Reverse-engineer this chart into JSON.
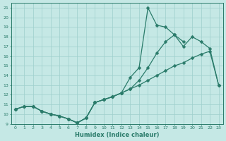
{
  "xlabel": "Humidex (Indice chaleur)",
  "x_values": [
    0,
    1,
    2,
    3,
    4,
    5,
    6,
    7,
    8,
    9,
    10,
    11,
    12,
    13,
    14,
    15,
    16,
    17,
    18,
    19,
    20,
    21,
    22,
    23
  ],
  "line_bottom": [
    10.5,
    10.8,
    10.8,
    10.3,
    10.0,
    9.8,
    9.5,
    9.1,
    9.6,
    11.2,
    11.5,
    11.8,
    12.2,
    12.6,
    13.0,
    13.5,
    14.0,
    14.5,
    15.0,
    15.3,
    15.8,
    16.2,
    16.5,
    13.0
  ],
  "line_mid": [
    10.5,
    10.8,
    10.8,
    10.3,
    10.0,
    9.8,
    9.5,
    9.1,
    9.6,
    11.2,
    11.5,
    11.8,
    12.2,
    12.6,
    13.5,
    14.8,
    16.3,
    17.5,
    18.2,
    17.0,
    18.0,
    17.5,
    16.8,
    13.0
  ],
  "line_top": [
    10.5,
    10.8,
    10.8,
    10.3,
    10.0,
    9.8,
    9.5,
    9.1,
    9.6,
    11.2,
    11.5,
    11.8,
    12.2,
    13.8,
    14.8,
    21.0,
    19.2,
    19.0,
    18.2,
    17.5,
    null,
    null,
    null,
    null
  ],
  "ylim": [
    9,
    21.5
  ],
  "xlim": [
    -0.5,
    23.5
  ],
  "yticks": [
    9,
    10,
    11,
    12,
    13,
    14,
    15,
    16,
    17,
    18,
    19,
    20,
    21
  ],
  "xticks": [
    0,
    1,
    2,
    3,
    4,
    5,
    6,
    7,
    8,
    9,
    10,
    11,
    12,
    13,
    14,
    15,
    16,
    17,
    18,
    19,
    20,
    21,
    22,
    23
  ],
  "line_color": "#2a7b6a",
  "bg_color": "#c5e8e5",
  "grid_color": "#9ecfcc",
  "marker_size": 2.5,
  "line_width": 0.9
}
